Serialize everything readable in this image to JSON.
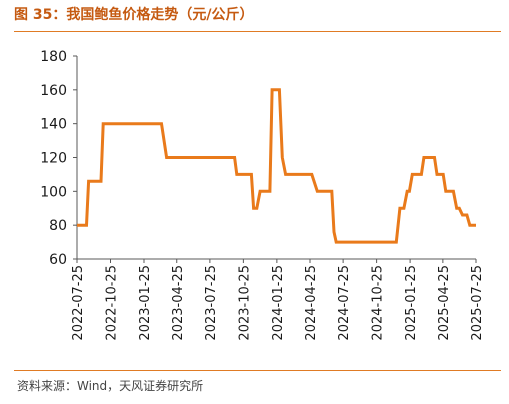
{
  "figure": {
    "title": "图 35：我国鲍鱼价格走势（元/公斤）",
    "source": "资料来源：Wind，天风证券研究所"
  },
  "colors": {
    "line": "#e97a1b",
    "accent": "#c55a11",
    "rule": "#e07b24",
    "axis": "#595959",
    "text": "#1a1a1a"
  },
  "chart_data": {
    "type": "line",
    "title": "",
    "xlabel": "",
    "ylabel": "",
    "ylim": [
      60,
      180
    ],
    "yticks": [
      60,
      80,
      100,
      120,
      140,
      160,
      180
    ],
    "xticks": [
      "2022-07-25",
      "2022-10-25",
      "2023-01-25",
      "2023-04-25",
      "2023-07-25",
      "2023-10-25",
      "2024-01-25",
      "2024-04-25",
      "2024-07-25",
      "2024-10-25",
      "2025-01-25",
      "2025-04-25",
      "2025-07-25"
    ],
    "xlim": [
      "2022-07-25",
      "2025-07-25"
    ],
    "grid": false,
    "legend": "none",
    "series": [
      {
        "name": "",
        "points": [
          [
            "2022-07-25",
            80
          ],
          [
            "2022-08-20",
            80
          ],
          [
            "2022-08-26",
            106
          ],
          [
            "2022-09-29",
            106
          ],
          [
            "2022-10-05",
            140
          ],
          [
            "2023-03-14",
            140
          ],
          [
            "2023-03-28",
            120
          ],
          [
            "2023-10-01",
            120
          ],
          [
            "2023-10-07",
            110
          ],
          [
            "2023-11-16",
            110
          ],
          [
            "2023-11-22",
            90
          ],
          [
            "2023-12-01",
            90
          ],
          [
            "2023-12-10",
            100
          ],
          [
            "2024-01-06",
            100
          ],
          [
            "2024-01-12",
            160
          ],
          [
            "2024-02-01",
            160
          ],
          [
            "2024-02-09",
            120
          ],
          [
            "2024-02-18",
            110
          ],
          [
            "2024-04-30",
            110
          ],
          [
            "2024-05-15",
            100
          ],
          [
            "2024-06-24",
            100
          ],
          [
            "2024-06-30",
            76
          ],
          [
            "2024-07-06",
            70
          ],
          [
            "2024-12-18",
            70
          ],
          [
            "2024-12-28",
            90
          ],
          [
            "2025-01-08",
            90
          ],
          [
            "2025-01-17",
            100
          ],
          [
            "2025-01-23",
            100
          ],
          [
            "2025-01-31",
            110
          ],
          [
            "2025-02-25",
            110
          ],
          [
            "2025-03-04",
            120
          ],
          [
            "2025-04-02",
            120
          ],
          [
            "2025-04-09",
            110
          ],
          [
            "2025-04-26",
            110
          ],
          [
            "2025-05-03",
            100
          ],
          [
            "2025-05-24",
            100
          ],
          [
            "2025-06-02",
            90
          ],
          [
            "2025-06-09",
            90
          ],
          [
            "2025-06-18",
            86
          ],
          [
            "2025-06-30",
            86
          ],
          [
            "2025-07-08",
            80
          ],
          [
            "2025-07-25",
            80
          ]
        ]
      }
    ]
  }
}
